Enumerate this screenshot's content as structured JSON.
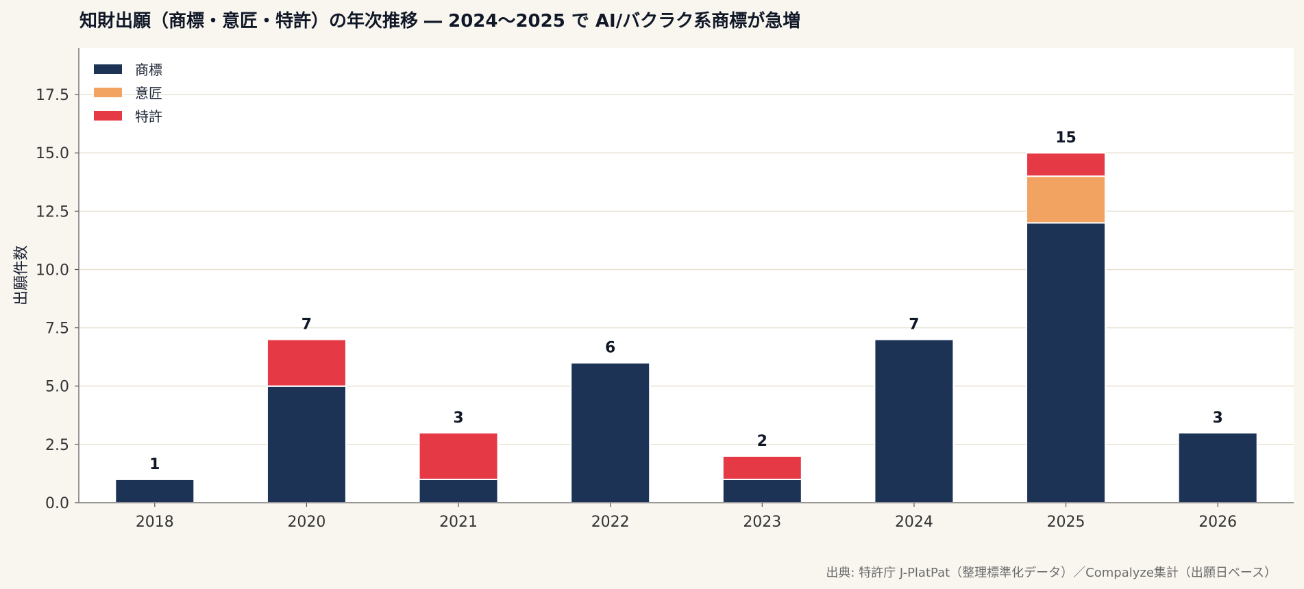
{
  "title": "知財出願（商標・意匠・特許）の年次推移 ― 2024〜2025 で AI/バクラク系商標が急増",
  "source": "出典: 特許庁 J-PlatPat（整理標準化データ）／Compalyze集計（出願日ベース）",
  "chart_data": {
    "type": "bar",
    "stacked": true,
    "title": "知財出願（商標・意匠・特許）の年次推移 ― 2024〜2025 で AI/バクラク系商標が急増",
    "xlabel": "",
    "ylabel": "出願件数",
    "ylim": [
      0,
      19.5
    ],
    "yticks": [
      0.0,
      2.5,
      5.0,
      7.5,
      10.0,
      12.5,
      15.0,
      17.5
    ],
    "ytick_labels": [
      "0.0",
      "2.5",
      "5.0",
      "7.5",
      "10.0",
      "12.5",
      "15.0",
      "17.5"
    ],
    "grid": "horizontal",
    "legend_position": "top-left",
    "categories": [
      "2018",
      "2020",
      "2021",
      "2022",
      "2023",
      "2024",
      "2025",
      "2026"
    ],
    "series": [
      {
        "name": "商標",
        "color": "#1c3355",
        "values": [
          1,
          5,
          1,
          6,
          1,
          7,
          12,
          3
        ]
      },
      {
        "name": "意匠",
        "color": "#f2a361",
        "values": [
          0,
          0,
          0,
          0,
          0,
          0,
          2,
          0
        ]
      },
      {
        "name": "特許",
        "color": "#e63946",
        "values": [
          0,
          2,
          2,
          0,
          1,
          0,
          1,
          0
        ]
      }
    ],
    "totals": [
      1,
      7,
      3,
      6,
      2,
      7,
      15,
      3
    ]
  }
}
